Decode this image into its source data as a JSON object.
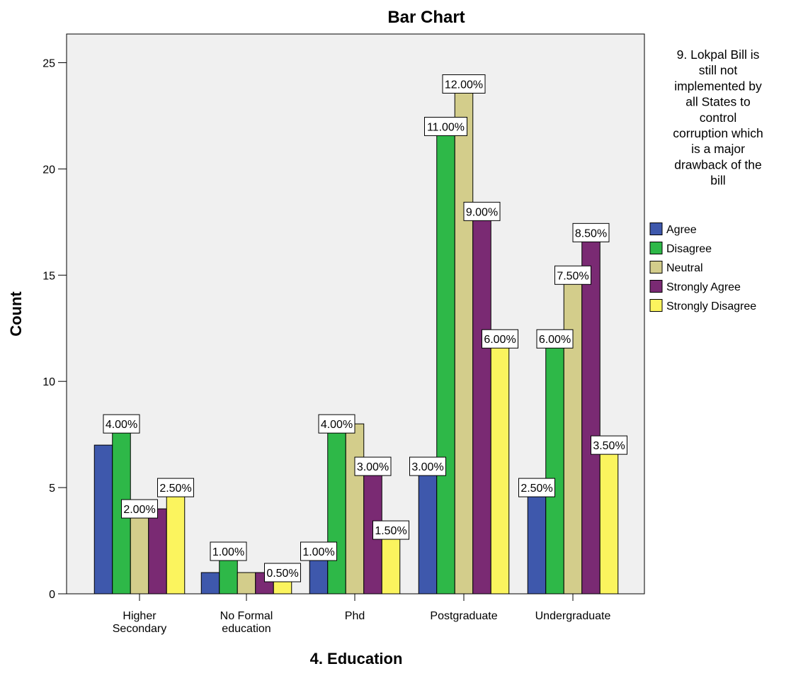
{
  "chart_data": {
    "type": "bar",
    "title": "Bar Chart",
    "xlabel": "4. Education",
    "ylabel": "Count",
    "ylim": [
      0,
      26
    ],
    "yticks": [
      "0",
      "5",
      "10",
      "15",
      "20",
      "25"
    ],
    "grid": false,
    "legend_position": "right",
    "legend_title": "9. Lokpal Bill is still not implemented by all States to control corruption which is a major drawback of the bill",
    "legend_title_lines": [
      "9. Lokpal Bill is",
      "still not",
      "implemented by",
      "all States to",
      "control",
      "corruption which",
      "is a major",
      "drawback of the",
      "bill"
    ],
    "categories": [
      "Higher Secondary",
      "No Formal education",
      "Phd",
      "Postgraduate",
      "Undergraduate"
    ],
    "category_lines": [
      [
        "Higher",
        "Secondary"
      ],
      [
        "No Formal",
        "education"
      ],
      [
        "Phd"
      ],
      [
        "Postgraduate"
      ],
      [
        "Undergraduate"
      ]
    ],
    "series": [
      {
        "name": "Agree",
        "color": "#3e58ac",
        "values": [
          7,
          1,
          2,
          6,
          5
        ],
        "labels": [
          "",
          "",
          "1.00%",
          "3.00%",
          "2.50%"
        ]
      },
      {
        "name": "Disagree",
        "color": "#2eb848",
        "values": [
          8,
          2,
          8,
          22,
          12
        ],
        "labels": [
          "4.00%",
          "1.00%",
          "4.00%",
          "11.00%",
          "6.00%"
        ]
      },
      {
        "name": "Neutral",
        "color": "#d3cd8b",
        "values": [
          4,
          1,
          8,
          24,
          15
        ],
        "labels": [
          "2.00%",
          "",
          "",
          "12.00%",
          "7.50%"
        ]
      },
      {
        "name": "Strongly Agree",
        "color": "#7a2a73",
        "values": [
          4,
          1,
          6,
          18,
          17
        ],
        "labels": [
          "",
          "",
          "3.00%",
          "9.00%",
          "8.50%"
        ]
      },
      {
        "name": "Strongly Disagree",
        "color": "#fbf45e",
        "values": [
          5,
          1,
          3,
          12,
          7
        ],
        "labels": [
          "2.50%",
          "0.50%",
          "1.50%",
          "6.00%",
          "3.50%"
        ]
      }
    ],
    "colors": {
      "plot_background": "#f0f0f0",
      "frame": "#000000",
      "label_box": "#ffffff"
    }
  }
}
